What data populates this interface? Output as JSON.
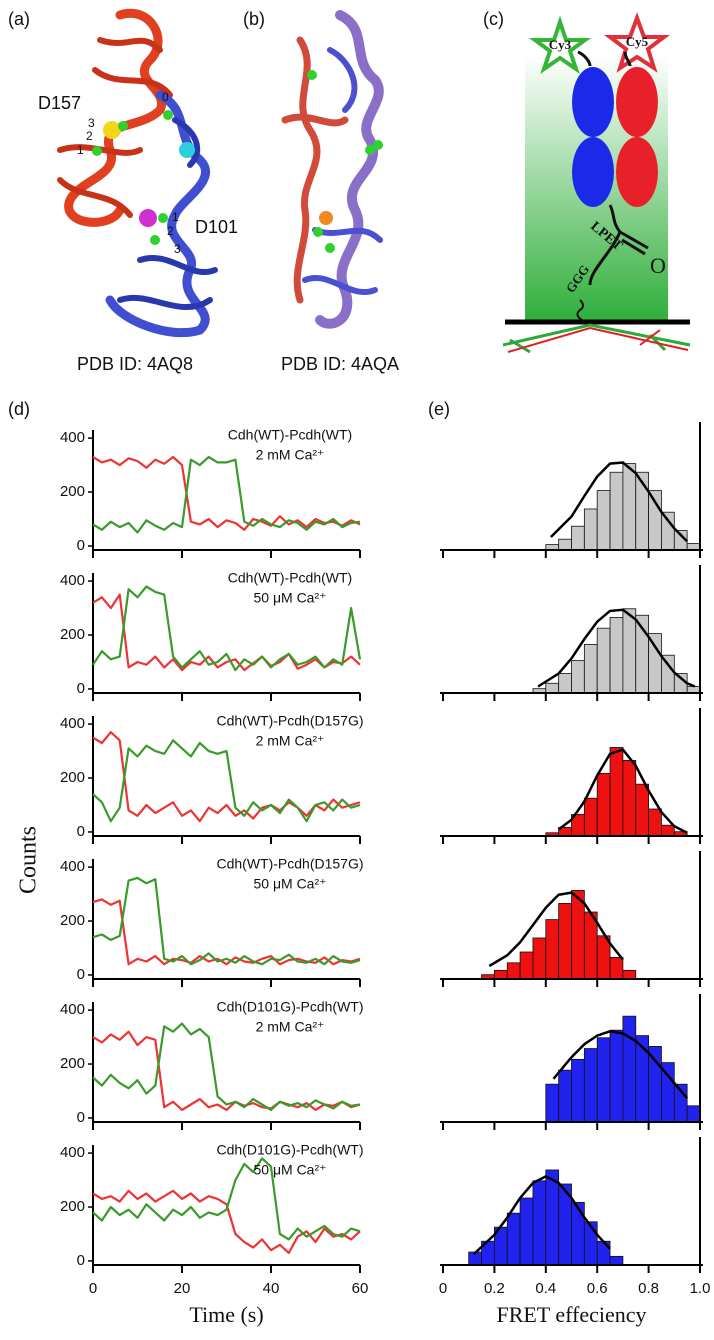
{
  "panels": {
    "a": {
      "label": "(a)",
      "residue_top": "D157",
      "site_numbers_top": [
        "3",
        "2",
        "1",
        "0"
      ],
      "residue_bottom": "D101",
      "site_numbers_bottom": [
        "1",
        "2",
        "3"
      ],
      "caption": "PDB ID: 4AQ8"
    },
    "b": {
      "label": "(b)",
      "caption": "PDB ID: 4AQA"
    },
    "c": {
      "label": "(c)",
      "donor": "Cy3",
      "acceptor": "Cy5",
      "linker": "LPET",
      "oxygen": "O",
      "anchor": "GGG"
    },
    "d": {
      "label": "(d)"
    },
    "e": {
      "label": "(e)"
    }
  },
  "chart_data": [
    {
      "type": "line",
      "title": "Cdh(WT)-Pcdh(WT)",
      "subtitle": "2 mM Ca²⁺",
      "x": [
        0,
        2,
        4,
        6,
        8,
        10,
        12,
        14,
        16,
        18,
        20,
        22,
        24,
        26,
        28,
        30,
        32,
        34,
        36,
        38,
        40,
        42,
        44,
        46,
        48,
        50,
        52,
        54,
        56,
        58,
        60
      ],
      "series": [
        {
          "color": "#ee3333",
          "values": [
            330,
            310,
            320,
            300,
            325,
            315,
            290,
            320,
            305,
            330,
            300,
            90,
            80,
            100,
            70,
            95,
            85,
            60,
            100,
            90,
            75,
            110,
            80,
            95,
            70,
            100,
            85,
            90,
            75,
            95,
            80
          ]
        },
        {
          "color": "#3a9a2a",
          "values": [
            80,
            60,
            90,
            70,
            85,
            50,
            95,
            75,
            60,
            85,
            70,
            320,
            300,
            330,
            310,
            310,
            320,
            90,
            75,
            100,
            80,
            70,
            95,
            85,
            60,
            90,
            80,
            100,
            70,
            85,
            90
          ]
        }
      ],
      "xlim": [
        0,
        60
      ],
      "xticks": [
        0,
        20,
        40,
        60
      ],
      "ylim": [
        -15,
        430
      ],
      "yticks": [
        0,
        200,
        400
      ]
    },
    {
      "type": "line",
      "title": "Cdh(WT)-Pcdh(WT)",
      "subtitle": "50 μM Ca²⁺",
      "x": [
        0,
        2,
        4,
        6,
        8,
        10,
        12,
        14,
        16,
        18,
        20,
        22,
        24,
        26,
        28,
        30,
        32,
        34,
        36,
        38,
        40,
        42,
        44,
        46,
        48,
        50,
        52,
        54,
        56,
        58,
        60
      ],
      "series": [
        {
          "color": "#ee3333",
          "values": [
            320,
            340,
            300,
            350,
            80,
            100,
            90,
            120,
            80,
            110,
            70,
            100,
            90,
            120,
            80,
            100,
            110,
            70,
            95,
            120,
            85,
            100,
            130,
            75,
            90,
            110,
            80,
            100,
            95,
            120,
            90
          ]
        },
        {
          "color": "#3a9a2a",
          "values": [
            90,
            140,
            110,
            120,
            370,
            340,
            380,
            360,
            350,
            120,
            80,
            110,
            140,
            90,
            100,
            130,
            70,
            110,
            90,
            120,
            80,
            110,
            130,
            90,
            100,
            120,
            80,
            110,
            90,
            300,
            110
          ]
        }
      ],
      "xlim": [
        0,
        60
      ],
      "xticks": [
        0,
        20,
        40,
        60
      ],
      "ylim": [
        -15,
        430
      ],
      "yticks": [
        0,
        200,
        400
      ]
    },
    {
      "type": "line",
      "title": "Cdh(WT)-Pcdh(D157G)",
      "subtitle": "2 mM  Ca²⁺",
      "x": [
        0,
        2,
        4,
        6,
        8,
        10,
        12,
        14,
        16,
        18,
        20,
        22,
        24,
        26,
        28,
        30,
        32,
        34,
        36,
        38,
        40,
        42,
        44,
        46,
        48,
        50,
        52,
        54,
        56,
        58,
        60
      ],
      "series": [
        {
          "color": "#ee3333",
          "values": [
            350,
            330,
            370,
            340,
            80,
            60,
            100,
            70,
            90,
            110,
            60,
            80,
            40,
            90,
            70,
            100,
            60,
            80,
            50,
            90,
            100,
            80,
            110,
            90,
            60,
            100,
            80,
            120,
            90,
            100,
            110
          ]
        },
        {
          "color": "#3a9a2a",
          "values": [
            140,
            110,
            40,
            90,
            310,
            280,
            320,
            300,
            290,
            340,
            310,
            280,
            330,
            300,
            290,
            300,
            90,
            60,
            110,
            80,
            100,
            70,
            120,
            90,
            40,
            100,
            110,
            80,
            120,
            90,
            100
          ]
        }
      ],
      "xlim": [
        0,
        60
      ],
      "xticks": [
        0,
        20,
        40,
        60
      ],
      "ylim": [
        -15,
        430
      ],
      "yticks": [
        0,
        200,
        400
      ]
    },
    {
      "type": "line",
      "title": "Cdh(WT)-Pcdh(D157G)",
      "subtitle": "50 μM  Ca²⁺",
      "ylabel": "Counts",
      "x": [
        0,
        2,
        4,
        6,
        8,
        10,
        12,
        14,
        16,
        18,
        20,
        22,
        24,
        26,
        28,
        30,
        32,
        34,
        36,
        38,
        40,
        42,
        44,
        46,
        48,
        50,
        52,
        54,
        56,
        58,
        60
      ],
      "series": [
        {
          "color": "#ee3333",
          "values": [
            270,
            280,
            260,
            275,
            40,
            60,
            50,
            70,
            40,
            60,
            55,
            45,
            70,
            50,
            60,
            40,
            65,
            50,
            45,
            60,
            70,
            40,
            55,
            60,
            50,
            45,
            65,
            40,
            55,
            50,
            60
          ]
        },
        {
          "color": "#3a9a2a",
          "values": [
            140,
            150,
            130,
            145,
            350,
            360,
            340,
            355,
            60,
            50,
            70,
            40,
            55,
            80,
            50,
            60,
            45,
            70,
            50,
            40,
            60,
            55,
            75,
            50,
            45,
            60,
            40,
            70,
            50,
            45,
            55
          ]
        }
      ],
      "xlim": [
        0,
        60
      ],
      "xticks": [
        0,
        20,
        40,
        60
      ],
      "ylim": [
        -15,
        430
      ],
      "yticks": [
        0,
        200,
        400
      ]
    },
    {
      "type": "line",
      "title": "Cdh(D101G)-Pcdh(WT)",
      "subtitle": "2 mM Ca²⁺",
      "x": [
        0,
        2,
        4,
        6,
        8,
        10,
        12,
        14,
        16,
        18,
        20,
        22,
        24,
        26,
        28,
        30,
        32,
        34,
        36,
        38,
        40,
        42,
        44,
        46,
        48,
        50,
        52,
        54,
        56,
        58,
        60
      ],
      "series": [
        {
          "color": "#ee3333",
          "values": [
            300,
            280,
            310,
            290,
            320,
            270,
            300,
            290,
            40,
            60,
            30,
            50,
            70,
            40,
            50,
            30,
            60,
            45,
            55,
            40,
            35,
            60,
            50,
            40,
            55,
            30,
            50,
            45,
            60,
            40,
            50
          ]
        },
        {
          "color": "#3a9a2a",
          "values": [
            150,
            120,
            160,
            130,
            110,
            140,
            90,
            120,
            340,
            320,
            350,
            310,
            330,
            300,
            80,
            50,
            60,
            40,
            70,
            50,
            30,
            60,
            45,
            55,
            40,
            65,
            50,
            35,
            60,
            45,
            50
          ]
        }
      ],
      "xlim": [
        0,
        60
      ],
      "xticks": [
        0,
        20,
        40,
        60
      ],
      "ylim": [
        -15,
        430
      ],
      "yticks": [
        0,
        200,
        400
      ]
    },
    {
      "type": "line",
      "title": "Cdh(D101G)-Pcdh(WT)",
      "subtitle": "50 μM Ca²⁺",
      "xlabel": "Time (s)",
      "x": [
        0,
        2,
        4,
        6,
        8,
        10,
        12,
        14,
        16,
        18,
        20,
        22,
        24,
        26,
        28,
        30,
        32,
        34,
        36,
        38,
        40,
        42,
        44,
        46,
        48,
        50,
        52,
        54,
        56,
        58,
        60
      ],
      "series": [
        {
          "color": "#ee3333",
          "values": [
            250,
            230,
            240,
            220,
            260,
            230,
            250,
            220,
            240,
            260,
            230,
            250,
            220,
            240,
            230,
            210,
            100,
            70,
            50,
            80,
            40,
            60,
            30,
            90,
            110,
            70,
            120,
            90,
            100,
            80,
            110
          ]
        },
        {
          "color": "#3a9a2a",
          "values": [
            180,
            150,
            200,
            170,
            190,
            160,
            210,
            180,
            150,
            190,
            170,
            200,
            160,
            180,
            170,
            190,
            300,
            360,
            330,
            380,
            350,
            100,
            80,
            120,
            90,
            110,
            130,
            100,
            90,
            120,
            110
          ]
        }
      ],
      "xlim": [
        0,
        60
      ],
      "xticks": [
        0,
        20,
        40,
        60
      ],
      "ylim": [
        -15,
        430
      ],
      "yticks": [
        0,
        200,
        400
      ]
    },
    {
      "type": "histogram",
      "color": "#c8c8c8",
      "bins": [
        0.4,
        0.45,
        0.5,
        0.55,
        0.6,
        0.65,
        0.7,
        0.75,
        0.8,
        0.85,
        0.9,
        0.95,
        1.0
      ],
      "counts": [
        5,
        10,
        22,
        38,
        55,
        72,
        80,
        72,
        55,
        35,
        18,
        6
      ],
      "fit": {
        "x": [
          0.42,
          0.5,
          0.55,
          0.6,
          0.65,
          0.7,
          0.75,
          0.8,
          0.85,
          0.9,
          0.95
        ],
        "values": [
          12,
          31,
          50,
          68,
          80,
          81,
          71,
          54,
          35,
          20,
          8
        ]
      },
      "xlim": [
        0,
        1
      ],
      "ylim": [
        0,
        100
      ],
      "xticks": [
        0,
        0.2,
        0.4,
        0.6,
        0.8,
        {
          "value": 1,
          "label": "1.0"
        }
      ]
    },
    {
      "type": "histogram",
      "color": "#c8c8c8",
      "bins": [
        0.35,
        0.4,
        0.45,
        0.5,
        0.55,
        0.6,
        0.65,
        0.7,
        0.75,
        0.8,
        0.85,
        0.9,
        0.95,
        1.0
      ],
      "counts": [
        4,
        9,
        18,
        30,
        45,
        60,
        70,
        78,
        72,
        55,
        35,
        18,
        6
      ],
      "fit": {
        "x": [
          0.37,
          0.45,
          0.5,
          0.55,
          0.6,
          0.65,
          0.7,
          0.75,
          0.8,
          0.85,
          0.9,
          0.95,
          0.98
        ],
        "values": [
          6,
          18,
          32,
          50,
          66,
          76,
          77,
          68,
          52,
          34,
          19,
          9,
          6
        ]
      },
      "xlim": [
        0,
        1
      ],
      "ylim": [
        0,
        100
      ],
      "xticks": [
        0,
        0.2,
        0.4,
        0.6,
        0.8,
        {
          "value": 1,
          "label": "1.0"
        }
      ]
    },
    {
      "type": "histogram",
      "color": "#ee1111",
      "bins": [
        0.4,
        0.45,
        0.5,
        0.55,
        0.6,
        0.65,
        0.7,
        0.75,
        0.8,
        0.85,
        0.9,
        0.95
      ],
      "counts": [
        3,
        8,
        20,
        35,
        58,
        82,
        70,
        48,
        25,
        10,
        4
      ],
      "fit": {
        "x": [
          0.45,
          0.5,
          0.55,
          0.6,
          0.65,
          0.7,
          0.75,
          0.8,
          0.85,
          0.9,
          0.95
        ],
        "values": [
          6,
          15,
          32,
          56,
          76,
          80,
          65,
          42,
          22,
          9,
          3
        ]
      },
      "xlim": [
        0,
        1
      ],
      "ylim": [
        0,
        100
      ],
      "xticks": [
        0,
        0.2,
        0.4,
        0.6,
        0.8,
        {
          "value": 1,
          "label": "1.0"
        }
      ]
    },
    {
      "type": "histogram",
      "color": "#ee1111",
      "bins": [
        0.15,
        0.2,
        0.25,
        0.3,
        0.35,
        0.4,
        0.45,
        0.5,
        0.55,
        0.6,
        0.65,
        0.7,
        0.75
      ],
      "counts": [
        4,
        8,
        15,
        25,
        38,
        55,
        70,
        82,
        62,
        40,
        20,
        8
      ],
      "fit": {
        "x": [
          0.18,
          0.25,
          0.3,
          0.35,
          0.4,
          0.45,
          0.5,
          0.55,
          0.6,
          0.65,
          0.7
        ],
        "values": [
          12,
          22,
          34,
          50,
          66,
          78,
          80,
          70,
          52,
          33,
          18
        ]
      },
      "xlim": [
        0,
        1
      ],
      "ylim": [
        0,
        100
      ],
      "xticks": [
        0,
        0.2,
        0.4,
        0.6,
        0.8,
        {
          "value": 1,
          "label": "1.0"
        }
      ]
    },
    {
      "type": "histogram",
      "color": "#2222ee",
      "bins": [
        0.4,
        0.45,
        0.5,
        0.55,
        0.6,
        0.65,
        0.7,
        0.75,
        0.8,
        0.85,
        0.9,
        0.95,
        1.0
      ],
      "counts": [
        35,
        48,
        58,
        68,
        78,
        85,
        98,
        80,
        70,
        55,
        35,
        15
      ],
      "fit": {
        "x": [
          0.43,
          0.5,
          0.55,
          0.6,
          0.65,
          0.7,
          0.75,
          0.8,
          0.85,
          0.9,
          0.95
        ],
        "values": [
          40,
          60,
          72,
          80,
          84,
          82,
          75,
          64,
          50,
          36,
          22
        ]
      },
      "xlim": [
        0,
        1
      ],
      "ylim": [
        0,
        100
      ],
      "xticks": [
        0,
        0.2,
        0.4,
        0.6,
        0.8,
        {
          "value": 1,
          "label": "1.0"
        }
      ]
    },
    {
      "type": "histogram",
      "color": "#2222ee",
      "xlabel": "FRET effeciency",
      "bins": [
        0.1,
        0.15,
        0.2,
        0.25,
        0.3,
        0.35,
        0.4,
        0.45,
        0.5,
        0.55,
        0.6,
        0.65,
        0.7
      ],
      "counts": [
        12,
        22,
        35,
        48,
        62,
        78,
        88,
        75,
        58,
        40,
        22,
        8
      ],
      "fit": {
        "x": [
          0.12,
          0.2,
          0.25,
          0.3,
          0.35,
          0.4,
          0.45,
          0.5,
          0.55,
          0.6,
          0.65
        ],
        "values": [
          10,
          28,
          44,
          62,
          76,
          82,
          76,
          62,
          44,
          28,
          15
        ]
      },
      "xlim": [
        0,
        1
      ],
      "ylim": [
        0,
        100
      ],
      "xticks": [
        0,
        0.2,
        0.4,
        0.6,
        0.8,
        {
          "value": 1,
          "label": "1.0"
        }
      ]
    }
  ]
}
